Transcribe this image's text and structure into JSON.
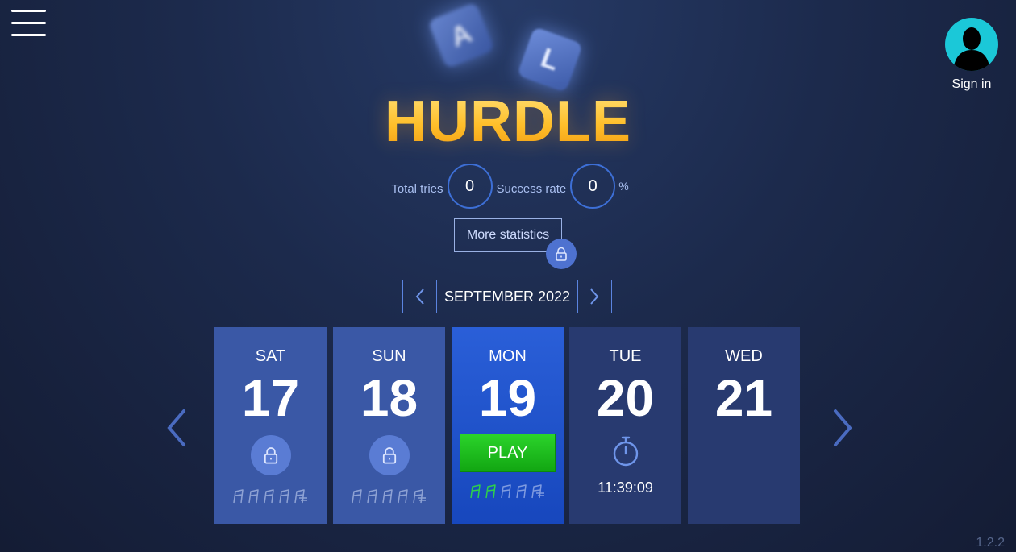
{
  "header": {
    "menu_icon": "hamburger-menu-icon",
    "signin_label": "Sign in",
    "avatar_icon": "user-silhouette-icon"
  },
  "logo": {
    "title": "HURDLE",
    "tiles": [
      "A",
      "L"
    ]
  },
  "stats": {
    "total_tries_label": "Total tries",
    "total_tries_value": "0",
    "success_rate_label": "Success rate",
    "success_rate_value": "0",
    "success_rate_unit": "%",
    "more_stats_label": "More statistics",
    "more_stats_lock_icon": "lock-icon"
  },
  "calendar": {
    "month_label": "SEPTEMBER 2022",
    "prev_icon": "chevron-left-icon",
    "next_icon": "chevron-right-icon",
    "days": [
      {
        "day": "SAT",
        "num": "17",
        "state": "locked"
      },
      {
        "day": "SUN",
        "num": "18",
        "state": "locked"
      },
      {
        "day": "MON",
        "num": "19",
        "state": "today",
        "action_label": "PLAY",
        "hurdles_done": 2
      },
      {
        "day": "TUE",
        "num": "20",
        "state": "countdown",
        "countdown": "11:39:09",
        "timer_icon": "stopwatch-icon"
      },
      {
        "day": "WED",
        "num": "21",
        "state": "future"
      }
    ],
    "hurdle_total": 5
  },
  "colors": {
    "background": "#1c2a4c",
    "logo_gold": "#ffbf2a",
    "past_card": "#3a58a6",
    "today_card": "#1f54ca",
    "future_card": "#283a70",
    "play_green": "#1fbf1f",
    "hurdle_done": "#2ed14a",
    "avatar_cyan": "#1bc8d8"
  },
  "version": "1.2.2"
}
